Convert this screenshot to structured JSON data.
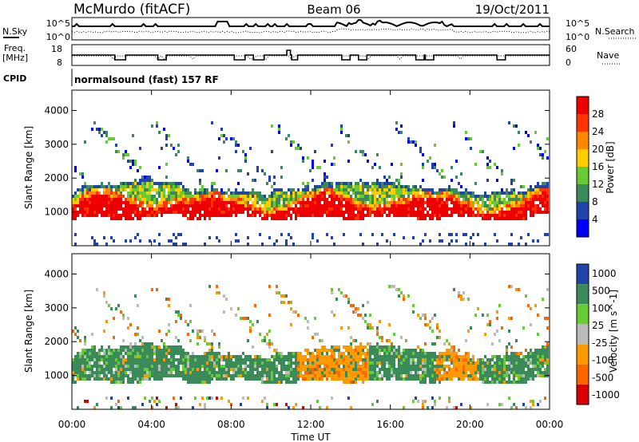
{
  "header": {
    "station": "McMurdo (fitACF)",
    "beam": "Beam 06",
    "date": "19/Oct/2011"
  },
  "noise_panel": {
    "left_label": "N.Sky",
    "right_label": "N.Search",
    "tick_top": "10^5",
    "tick_bottom": "10^0"
  },
  "freq_panel": {
    "left_label_1": "Freq.",
    "left_label_2": "[MHz]",
    "right_label": "Nave",
    "left_tick_top": "18",
    "left_tick_bottom": "8",
    "right_tick_top": "60",
    "right_tick_bottom": "0"
  },
  "cpid": {
    "label": "CPID",
    "value": "normalsound (fast) 157 RF"
  },
  "colors": {
    "power": [
      "#0000ff",
      "#2244aa",
      "#3a8a5a",
      "#66cc33",
      "#ffcc00",
      "#ff8800",
      "#ff3300",
      "#ee0000"
    ],
    "velocity": [
      "#2244aa",
      "#3a8a5a",
      "#66cc33",
      "#bbbbbb",
      "#ff9900",
      "#ff6600",
      "#dd0000"
    ]
  },
  "chart_data": [
    {
      "type": "heatmap",
      "title": "",
      "quantity": "Power",
      "xlabel": "",
      "ylabel": "Slant Range [km]",
      "x_ticks": [
        "00:00",
        "04:00",
        "08:00",
        "12:00",
        "16:00",
        "20:00",
        "00:00"
      ],
      "y_ticks": [
        "1000",
        "2000",
        "3000",
        "4000"
      ],
      "ylim": [
        0,
        4600
      ],
      "colorbar_label": "Power [dB]",
      "colorbar_ticks": [
        "4",
        "8",
        "12",
        "16",
        "20",
        "24",
        "28"
      ],
      "clim": [
        0,
        32
      ],
      "dominant_band_km": [
        700,
        1700
      ]
    },
    {
      "type": "heatmap",
      "title": "",
      "quantity": "Velocity",
      "xlabel": "Time UT",
      "ylabel": "Slant Range [km]",
      "x_ticks": [
        "00:00",
        "04:00",
        "08:00",
        "12:00",
        "16:00",
        "20:00",
        "00:00"
      ],
      "y_ticks": [
        "1000",
        "2000",
        "3000",
        "4000"
      ],
      "ylim": [
        0,
        4600
      ],
      "colorbar_label": "Velocity [m s^-1]",
      "colorbar_ticks": [
        "1000",
        "500",
        "100",
        "25",
        "-25",
        "-100",
        "-500",
        "-1000"
      ],
      "dominant_band_km": [
        700,
        1700
      ]
    }
  ]
}
